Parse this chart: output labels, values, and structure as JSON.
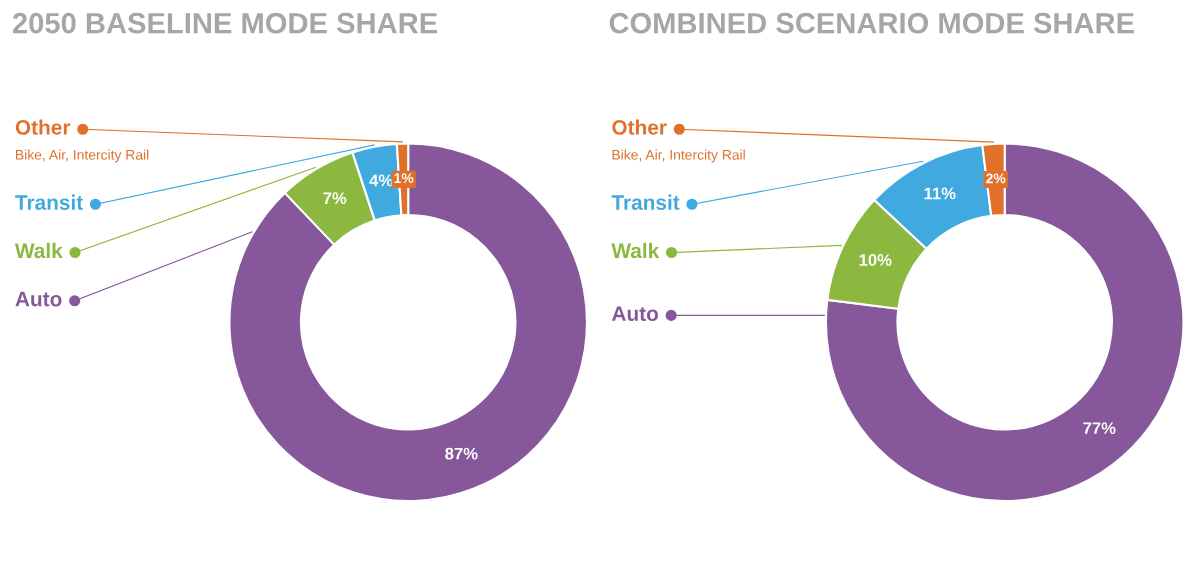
{
  "chart_data": [
    {
      "type": "donut",
      "title": "2050 BASELINE MODE SHARE",
      "categories": [
        "Auto",
        "Walk",
        "Transit",
        "Other"
      ],
      "values": [
        87,
        7,
        4,
        1
      ],
      "value_labels": [
        "87%",
        "7%",
        "4%",
        "1%"
      ],
      "colors": [
        "#87579c",
        "#8cb83f",
        "#3fa9e0",
        "#e0702a"
      ],
      "annotations": [
        "Bike, Air, Intercity Rail"
      ],
      "legend": "top left"
    },
    {
      "type": "donut",
      "title": "COMBINED SCENARIO MODE SHARE",
      "categories": [
        "Auto",
        "Walk",
        "Transit",
        "Other"
      ],
      "values": [
        77,
        10,
        11,
        2
      ],
      "value_labels": [
        "77%",
        "10%",
        "11%",
        "2%"
      ],
      "colors": [
        "#87579c",
        "#8cb83f",
        "#3fa9e0",
        "#e0702a"
      ],
      "annotations": [
        "Bike, Air, Intercity Rail"
      ],
      "legend": "top left"
    }
  ]
}
